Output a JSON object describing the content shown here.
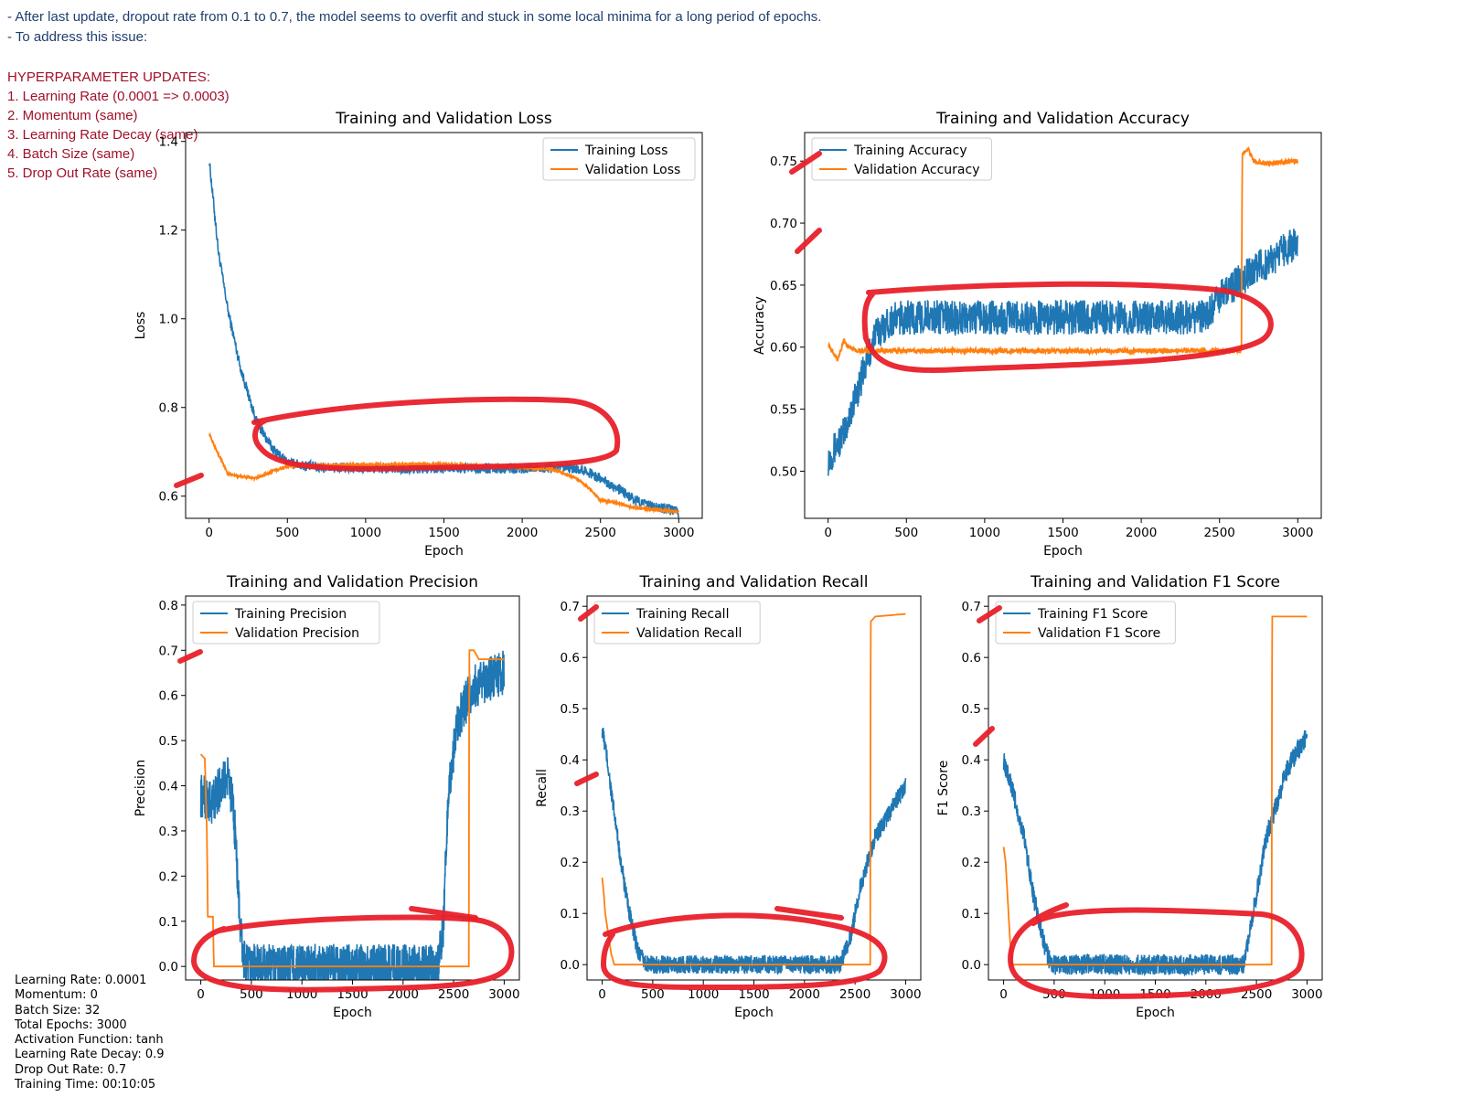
{
  "notes": {
    "line1": "- After last update, dropout rate from 0.1 to 0.7, the model seems to overfit and stuck in some local minima for a long period of epochs.",
    "line2": "- To address this issue:",
    "heading": "HYPERPARAMETER UPDATES:",
    "items": [
      "1. Learning Rate (0.0001 => 0.0003)",
      "2. Momentum (same)",
      "3. Learning Rate Decay (same)",
      "4. Batch Size (same)",
      "5. Drop Out Rate (same)"
    ]
  },
  "params": [
    "Learning Rate: 0.0001",
    "Momentum: 0",
    "Batch Size: 32",
    "Total Epochs: 3000",
    "Activation Function: tanh",
    "Learning Rate Decay: 0.9",
    "Drop Out Rate: 0.7",
    "Training Time: 00:10:05"
  ],
  "colors": {
    "training": "#1f77b4",
    "validation": "#ff7f0e",
    "annotation": "#e8202a"
  },
  "chart_data": [
    {
      "id": "loss",
      "type": "line",
      "title": "Training and Validation Loss",
      "xlabel": "Epoch",
      "ylabel": "Loss",
      "xlim": [
        -150,
        3150
      ],
      "ylim": [
        0.55,
        1.42
      ],
      "xticks": [
        0,
        500,
        1000,
        1500,
        2000,
        2500,
        3000
      ],
      "xtick_labels": [
        "0",
        "500",
        "1000",
        "1500",
        "2000",
        "2500",
        "3000"
      ],
      "yticks": [
        0.6,
        0.8,
        1.0,
        1.2,
        1.4
      ],
      "ytick_labels": [
        "0.6",
        "0.8",
        "1.0",
        "1.2",
        "1.4"
      ],
      "legend": "upper right",
      "series": [
        {
          "name": "Training Loss",
          "color": "#1f77b4",
          "noise": 0.012,
          "points": [
            [
              0,
              1.36
            ],
            [
              60,
              1.15
            ],
            [
              120,
              1.02
            ],
            [
              200,
              0.89
            ],
            [
              300,
              0.77
            ],
            [
              400,
              0.71
            ],
            [
              500,
              0.675
            ],
            [
              700,
              0.665
            ],
            [
              1000,
              0.663
            ],
            [
              1500,
              0.663
            ],
            [
              2000,
              0.663
            ],
            [
              2300,
              0.663
            ],
            [
              2400,
              0.658
            ],
            [
              2500,
              0.64
            ],
            [
              2600,
              0.62
            ],
            [
              2700,
              0.595
            ],
            [
              2800,
              0.58
            ],
            [
              3000,
              0.565
            ]
          ]
        },
        {
          "name": "Validation Loss",
          "color": "#ff7f0e",
          "noise": 0.003,
          "points": [
            [
              0,
              0.74
            ],
            [
              40,
              0.71
            ],
            [
              80,
              0.68
            ],
            [
              120,
              0.65
            ],
            [
              200,
              0.645
            ],
            [
              300,
              0.64
            ],
            [
              400,
              0.655
            ],
            [
              500,
              0.668
            ],
            [
              1000,
              0.671
            ],
            [
              1500,
              0.672
            ],
            [
              2000,
              0.665
            ],
            [
              2200,
              0.66
            ],
            [
              2350,
              0.64
            ],
            [
              2450,
              0.61
            ],
            [
              2500,
              0.59
            ],
            [
              2600,
              0.585
            ],
            [
              2700,
              0.575
            ],
            [
              3000,
              0.565
            ]
          ]
        }
      ]
    },
    {
      "id": "accuracy",
      "type": "line",
      "title": "Training and Validation Accuracy",
      "xlabel": "Epoch",
      "ylabel": "Accuracy",
      "xlim": [
        -150,
        3150
      ],
      "ylim": [
        0.462,
        0.773
      ],
      "xticks": [
        0,
        500,
        1000,
        1500,
        2000,
        2500,
        3000
      ],
      "xtick_labels": [
        "0",
        "500",
        "1000",
        "1500",
        "2000",
        "2500",
        "3000"
      ],
      "yticks": [
        0.5,
        0.55,
        0.6,
        0.65,
        0.7,
        0.75
      ],
      "ytick_labels": [
        "0.50",
        "0.55",
        "0.60",
        "0.65",
        "0.70",
        "0.75"
      ],
      "legend": "upper left",
      "series": [
        {
          "name": "Training Accuracy",
          "color": "#1f77b4",
          "noise": 0.014,
          "points": [
            [
              0,
              0.51
            ],
            [
              100,
              0.53
            ],
            [
              200,
              0.57
            ],
            [
              300,
              0.61
            ],
            [
              400,
              0.622
            ],
            [
              500,
              0.624
            ],
            [
              1000,
              0.624
            ],
            [
              2000,
              0.624
            ],
            [
              2400,
              0.624
            ],
            [
              2500,
              0.64
            ],
            [
              2700,
              0.66
            ],
            [
              3000,
              0.685
            ]
          ]
        },
        {
          "name": "Validation Accuracy",
          "color": "#ff7f0e",
          "noise": 0.002,
          "points": [
            [
              0,
              0.603
            ],
            [
              60,
              0.59
            ],
            [
              100,
              0.605
            ],
            [
              130,
              0.6
            ],
            [
              200,
              0.597
            ],
            [
              500,
              0.597
            ],
            [
              1000,
              0.597
            ],
            [
              2000,
              0.597
            ],
            [
              2640,
              0.597
            ],
            [
              2645,
              0.755
            ],
            [
              2680,
              0.76
            ],
            [
              2720,
              0.75
            ],
            [
              2800,
              0.748
            ],
            [
              3000,
              0.75
            ]
          ]
        }
      ]
    },
    {
      "id": "precision",
      "type": "line",
      "title": "Training and Validation Precision",
      "xlabel": "Epoch",
      "ylabel": "Precision",
      "xlim": [
        -150,
        3150
      ],
      "ylim": [
        -0.03,
        0.82
      ],
      "xticks": [
        0,
        500,
        1000,
        1500,
        2000,
        2500,
        3000
      ],
      "xtick_labels": [
        "0",
        "500",
        "1000",
        "1500",
        "2000",
        "2500",
        "3000"
      ],
      "yticks": [
        0.0,
        0.1,
        0.2,
        0.3,
        0.4,
        0.5,
        0.6,
        0.7,
        0.8
      ],
      "ytick_labels": [
        "0.0",
        "0.1",
        "0.2",
        "0.3",
        "0.4",
        "0.5",
        "0.6",
        "0.7",
        "0.8"
      ],
      "legend": "upper left",
      "series": [
        {
          "name": "Training Precision",
          "color": "#1f77b4",
          "noise": 0.05,
          "points": [
            [
              0,
              0.38
            ],
            [
              100,
              0.36
            ],
            [
              200,
              0.4
            ],
            [
              280,
              0.42
            ],
            [
              340,
              0.3
            ],
            [
              380,
              0.12
            ],
            [
              420,
              0.02
            ],
            [
              450,
              0.0
            ],
            [
              2350,
              0.0
            ],
            [
              2400,
              0.1
            ],
            [
              2450,
              0.4
            ],
            [
              2550,
              0.55
            ],
            [
              2700,
              0.62
            ],
            [
              3000,
              0.65
            ]
          ]
        },
        {
          "name": "Validation Precision",
          "color": "#ff7f0e",
          "noise": 0.0,
          "points": [
            [
              0,
              0.47
            ],
            [
              40,
              0.46
            ],
            [
              60,
              0.3
            ],
            [
              70,
              0.11
            ],
            [
              120,
              0.11
            ],
            [
              130,
              0.0
            ],
            [
              2650,
              0.0
            ],
            [
              2655,
              0.7
            ],
            [
              2700,
              0.7
            ],
            [
              2750,
              0.68
            ],
            [
              3000,
              0.68
            ]
          ]
        }
      ]
    },
    {
      "id": "recall",
      "type": "line",
      "title": "Training and Validation Recall",
      "xlabel": "Epoch",
      "ylabel": "Recall",
      "xlim": [
        -150,
        3150
      ],
      "ylim": [
        -0.03,
        0.72
      ],
      "xticks": [
        0,
        500,
        1000,
        1500,
        2000,
        2500,
        3000
      ],
      "xtick_labels": [
        "0",
        "500",
        "1000",
        "1500",
        "2000",
        "2500",
        "3000"
      ],
      "yticks": [
        0.0,
        0.1,
        0.2,
        0.3,
        0.4,
        0.5,
        0.6,
        0.7
      ],
      "ytick_labels": [
        "0.0",
        "0.1",
        "0.2",
        "0.3",
        "0.4",
        "0.5",
        "0.6",
        "0.7"
      ],
      "legend": "upper left",
      "series": [
        {
          "name": "Training Recall",
          "color": "#1f77b4",
          "noise": 0.018,
          "points": [
            [
              0,
              0.46
            ],
            [
              50,
              0.4
            ],
            [
              100,
              0.32
            ],
            [
              150,
              0.25
            ],
            [
              200,
              0.18
            ],
            [
              250,
              0.12
            ],
            [
              300,
              0.07
            ],
            [
              350,
              0.03
            ],
            [
              400,
              0.01
            ],
            [
              450,
              0.0
            ],
            [
              2350,
              0.0
            ],
            [
              2450,
              0.05
            ],
            [
              2550,
              0.15
            ],
            [
              2700,
              0.25
            ],
            [
              2850,
              0.3
            ],
            [
              3000,
              0.35
            ]
          ]
        },
        {
          "name": "Validation Recall",
          "color": "#ff7f0e",
          "noise": 0.0,
          "points": [
            [
              0,
              0.17
            ],
            [
              15,
              0.14
            ],
            [
              30,
              0.1
            ],
            [
              60,
              0.06
            ],
            [
              90,
              0.02
            ],
            [
              120,
              0.0
            ],
            [
              2650,
              0.0
            ],
            [
              2655,
              0.67
            ],
            [
              2700,
              0.68
            ],
            [
              3000,
              0.685
            ]
          ]
        }
      ]
    },
    {
      "id": "f1",
      "type": "line",
      "title": "Training and Validation F1 Score",
      "xlabel": "Epoch",
      "ylabel": "F1 Score",
      "xlim": [
        -150,
        3150
      ],
      "ylim": [
        -0.03,
        0.72
      ],
      "xticks": [
        0,
        500,
        1000,
        1500,
        2000,
        2500,
        3000
      ],
      "xtick_labels": [
        "0",
        "500",
        "1000",
        "1500",
        "2000",
        "2500",
        "3000"
      ],
      "yticks": [
        0.0,
        0.1,
        0.2,
        0.3,
        0.4,
        0.5,
        0.6,
        0.7
      ],
      "ytick_labels": [
        "0.0",
        "0.1",
        "0.2",
        "0.3",
        "0.4",
        "0.5",
        "0.6",
        "0.7"
      ],
      "legend": "upper left",
      "series": [
        {
          "name": "Training F1 Score",
          "color": "#1f77b4",
          "noise": 0.02,
          "points": [
            [
              0,
              0.4
            ],
            [
              100,
              0.33
            ],
            [
              200,
              0.25
            ],
            [
              300,
              0.13
            ],
            [
              400,
              0.04
            ],
            [
              450,
              0.01
            ],
            [
              480,
              0.0
            ],
            [
              2380,
              0.0
            ],
            [
              2450,
              0.08
            ],
            [
              2600,
              0.25
            ],
            [
              2800,
              0.38
            ],
            [
              3000,
              0.45
            ]
          ]
        },
        {
          "name": "Validation F1 Score",
          "color": "#ff7f0e",
          "noise": 0.0,
          "points": [
            [
              0,
              0.23
            ],
            [
              20,
              0.2
            ],
            [
              40,
              0.13
            ],
            [
              60,
              0.06
            ],
            [
              80,
              0.0
            ],
            [
              2650,
              0.0
            ],
            [
              2655,
              0.68
            ],
            [
              2700,
              0.68
            ],
            [
              3000,
              0.68
            ]
          ]
        }
      ]
    }
  ]
}
